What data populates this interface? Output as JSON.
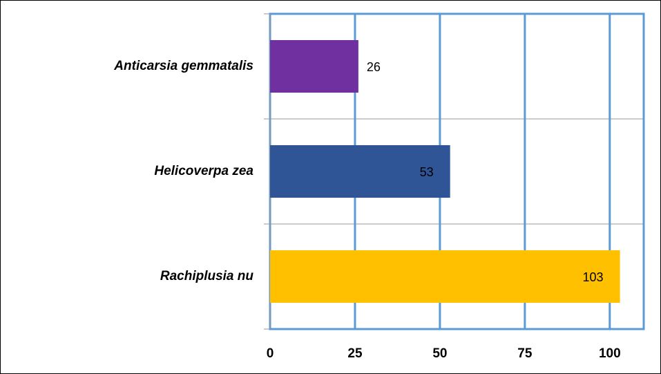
{
  "chart_data": {
    "type": "bar",
    "orientation": "horizontal",
    "categories": [
      "Anticarsia gemmatalis",
      "Helicoverpa zea",
      "Rachiplusia nu"
    ],
    "values": [
      26,
      53,
      103
    ],
    "colors": [
      "#7030a0",
      "#2f5597",
      "#ffc000"
    ],
    "xlim": [
      0,
      110
    ],
    "xticks": [
      0,
      25,
      50,
      75,
      100
    ],
    "grid": true,
    "grid_color": "#5b9bd5"
  }
}
